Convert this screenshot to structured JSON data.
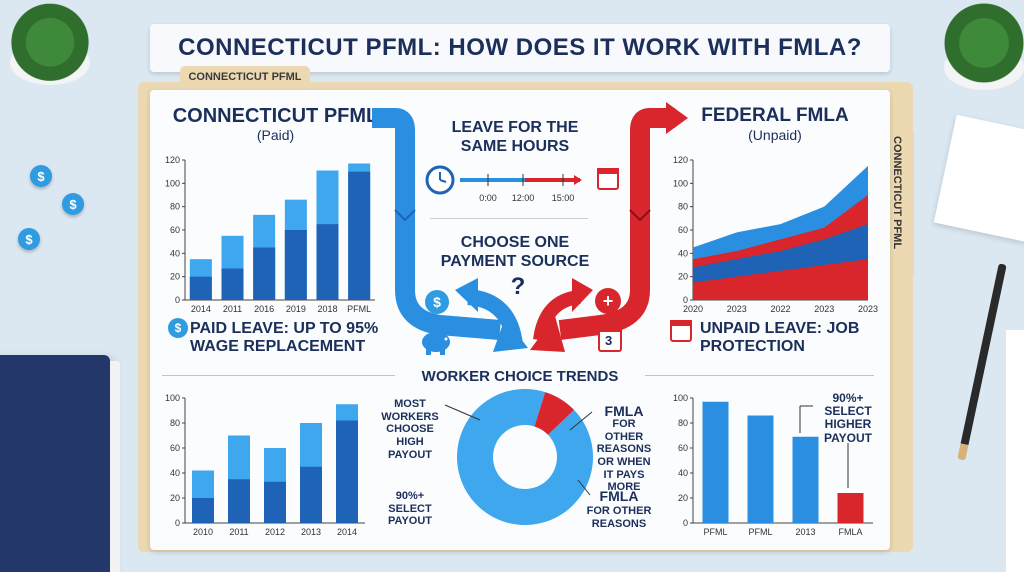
{
  "title": "CONNECTICUT PFML: HOW DOES IT WORK WITH FMLA?",
  "folder_tab": "CONNECTICUT PFML",
  "side_tab": "CONNECTICUT PFML",
  "left_panel": {
    "heading": "CONNECTICUT PFML",
    "subheading": "(Paid)",
    "caption": "PAID LEAVE: UP TO 95% WAGE REPLACEMENT"
  },
  "right_panel": {
    "heading": "FEDERAL FMLA",
    "subheading": "(Unpaid)",
    "caption": "UNPAID LEAVE: JOB PROTECTION"
  },
  "center": {
    "same_hours": "LEAVE FOR THE SAME HOURS",
    "timeline_ticks": [
      "0:00",
      "12:00",
      "15:00"
    ],
    "choose": "CHOOSE ONE PAYMENT SOURCE",
    "question": "?",
    "calendar_day": "3",
    "coin_symbol": "$",
    "medical_symbol": "+"
  },
  "trends_title": "WORKER CHOICE TRENDS",
  "donut_labels": {
    "most": "MOST WORKERS CHOOSE HIGH PAYOUT",
    "select": "90%+ SELECT PAYOUT",
    "fmla_top_title": "FMLA",
    "fmla_top": "FOR OTHER REASONS OR WHEN IT PAYS MORE",
    "fmla_bottom_title": "FMLA",
    "fmla_bottom": "FOR OTHER REASONS"
  },
  "bottom_right_label": "90%+ SELECT HIGHER PAYOUT",
  "colors": {
    "blue_dark": "#1f63b6",
    "blue": "#2a8fe0",
    "blue_light": "#3ea7ee",
    "red": "#d8262c",
    "navy": "#1b2f5a"
  },
  "chart_data": [
    {
      "type": "bar",
      "id": "pfml_top",
      "categories": [
        "2014",
        "2011",
        "2016",
        "2019",
        "2018",
        "PFML"
      ],
      "series": [
        {
          "values": [
            20,
            27,
            45,
            60,
            65,
            110
          ]
        },
        {
          "values": [
            35,
            55,
            73,
            86,
            111,
            117
          ]
        }
      ],
      "ylim": [
        0,
        120
      ],
      "yticks": [
        0,
        20,
        40,
        60,
        80,
        100,
        120
      ]
    },
    {
      "type": "area",
      "id": "fmla_top",
      "categories": [
        "2020",
        "2023",
        "2022",
        "2023",
        "2023"
      ],
      "series": [
        {
          "values": [
            15,
            20,
            25,
            30,
            35
          ]
        },
        {
          "values": [
            28,
            35,
            42,
            52,
            65
          ]
        },
        {
          "values": [
            35,
            42,
            52,
            62,
            90
          ]
        },
        {
          "values": [
            45,
            58,
            65,
            80,
            115
          ]
        }
      ],
      "ylim": [
        0,
        120
      ],
      "yticks": [
        0,
        20,
        40,
        60,
        80,
        100,
        120
      ]
    },
    {
      "type": "bar",
      "id": "trends_left",
      "categories": [
        "2010",
        "2011",
        "2012",
        "2013",
        "2014"
      ],
      "series": [
        {
          "values": [
            20,
            35,
            33,
            45,
            82
          ]
        },
        {
          "values": [
            42,
            70,
            60,
            80,
            95
          ]
        }
      ],
      "ylim": [
        0,
        100
      ],
      "yticks": [
        0,
        20,
        40,
        60,
        80,
        100
      ]
    },
    {
      "type": "pie",
      "id": "donut",
      "values": [
        92,
        8
      ]
    },
    {
      "type": "bar",
      "id": "trends_right",
      "categories": [
        "PFML",
        "PFML",
        "2013",
        "FMLA"
      ],
      "values": [
        97,
        86,
        69,
        24
      ],
      "ylim": [
        0,
        100
      ],
      "yticks": [
        0,
        20,
        40,
        60,
        80,
        100
      ]
    }
  ]
}
